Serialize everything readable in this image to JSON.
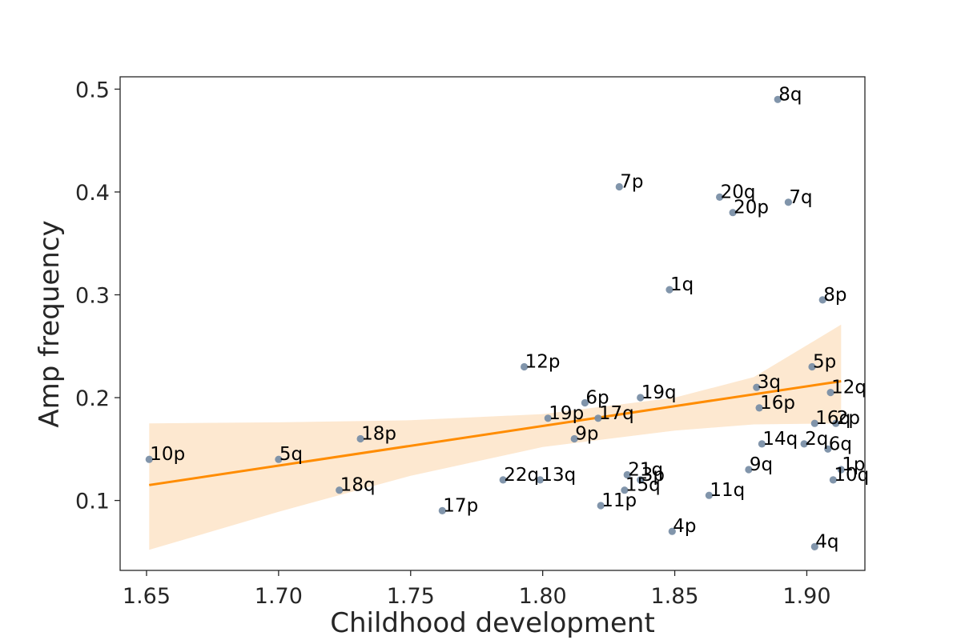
{
  "chart_data": {
    "type": "scatter",
    "title": "",
    "xlabel": "Childhood development",
    "ylabel": "Amp frequency",
    "xlim": [
      1.64,
      1.922
    ],
    "ylim": [
      0.032,
      0.512
    ],
    "xticks": [
      1.65,
      1.7,
      1.75,
      1.8,
      1.85,
      1.9
    ],
    "xtick_labels": [
      "1.65",
      "1.70",
      "1.75",
      "1.80",
      "1.85",
      "1.90"
    ],
    "yticks": [
      0.1,
      0.2,
      0.3,
      0.4,
      0.5
    ],
    "ytick_labels": [
      "0.1",
      "0.2",
      "0.3",
      "0.4",
      "0.5"
    ],
    "grid": false,
    "point_color": "#7a8fa6",
    "fit_color": "#ff8c00",
    "band_color": "#fde8d0",
    "regression_line": {
      "x": [
        1.651,
        1.913
      ],
      "y": [
        0.115,
        0.216
      ]
    },
    "confidence_band": {
      "x": [
        1.651,
        1.7,
        1.75,
        1.8,
        1.85,
        1.88,
        1.913
      ],
      "upper": [
        0.175,
        0.176,
        0.178,
        0.184,
        0.2,
        0.22,
        0.271
      ],
      "lower": [
        0.052,
        0.089,
        0.124,
        0.152,
        0.168,
        0.174,
        0.175
      ]
    },
    "points": [
      {
        "label": "8q",
        "x": 1.889,
        "y": 0.49
      },
      {
        "label": "7p",
        "x": 1.829,
        "y": 0.405
      },
      {
        "label": "20q",
        "x": 1.867,
        "y": 0.395
      },
      {
        "label": "7q",
        "x": 1.893,
        "y": 0.39
      },
      {
        "label": "20p",
        "x": 1.872,
        "y": 0.38
      },
      {
        "label": "1q",
        "x": 1.848,
        "y": 0.305
      },
      {
        "label": "8p",
        "x": 1.906,
        "y": 0.295
      },
      {
        "label": "12p",
        "x": 1.793,
        "y": 0.23
      },
      {
        "label": "5p",
        "x": 1.902,
        "y": 0.23
      },
      {
        "label": "3q",
        "x": 1.881,
        "y": 0.21
      },
      {
        "label": "12q",
        "x": 1.909,
        "y": 0.205
      },
      {
        "label": "19q",
        "x": 1.837,
        "y": 0.2
      },
      {
        "label": "6p",
        "x": 1.816,
        "y": 0.195
      },
      {
        "label": "16p",
        "x": 1.882,
        "y": 0.19
      },
      {
        "label": "19p",
        "x": 1.802,
        "y": 0.18
      },
      {
        "label": "17q",
        "x": 1.821,
        "y": 0.18
      },
      {
        "label": "16q",
        "x": 1.903,
        "y": 0.175
      },
      {
        "label": "2p",
        "x": 1.911,
        "y": 0.175
      },
      {
        "label": "9p",
        "x": 1.812,
        "y": 0.16
      },
      {
        "label": "18p",
        "x": 1.731,
        "y": 0.16
      },
      {
        "label": "14q",
        "x": 1.883,
        "y": 0.155
      },
      {
        "label": "2q",
        "x": 1.899,
        "y": 0.155
      },
      {
        "label": "6q",
        "x": 1.908,
        "y": 0.15
      },
      {
        "label": "10p",
        "x": 1.651,
        "y": 0.14
      },
      {
        "label": "5q",
        "x": 1.7,
        "y": 0.14
      },
      {
        "label": "9q",
        "x": 1.878,
        "y": 0.13
      },
      {
        "label": "1p",
        "x": 1.913,
        "y": 0.13
      },
      {
        "label": "21q",
        "x": 1.832,
        "y": 0.125
      },
      {
        "label": "3p",
        "x": 1.837,
        "y": 0.12
      },
      {
        "label": "22q",
        "x": 1.785,
        "y": 0.12
      },
      {
        "label": "13q",
        "x": 1.799,
        "y": 0.12
      },
      {
        "label": "10q",
        "x": 1.91,
        "y": 0.12
      },
      {
        "label": "15q",
        "x": 1.831,
        "y": 0.11
      },
      {
        "label": "18q",
        "x": 1.723,
        "y": 0.11
      },
      {
        "label": "11q",
        "x": 1.863,
        "y": 0.105
      },
      {
        "label": "11p",
        "x": 1.822,
        "y": 0.095
      },
      {
        "label": "17p",
        "x": 1.762,
        "y": 0.09
      },
      {
        "label": "4p",
        "x": 1.849,
        "y": 0.07
      },
      {
        "label": "4q",
        "x": 1.903,
        "y": 0.055
      }
    ]
  }
}
